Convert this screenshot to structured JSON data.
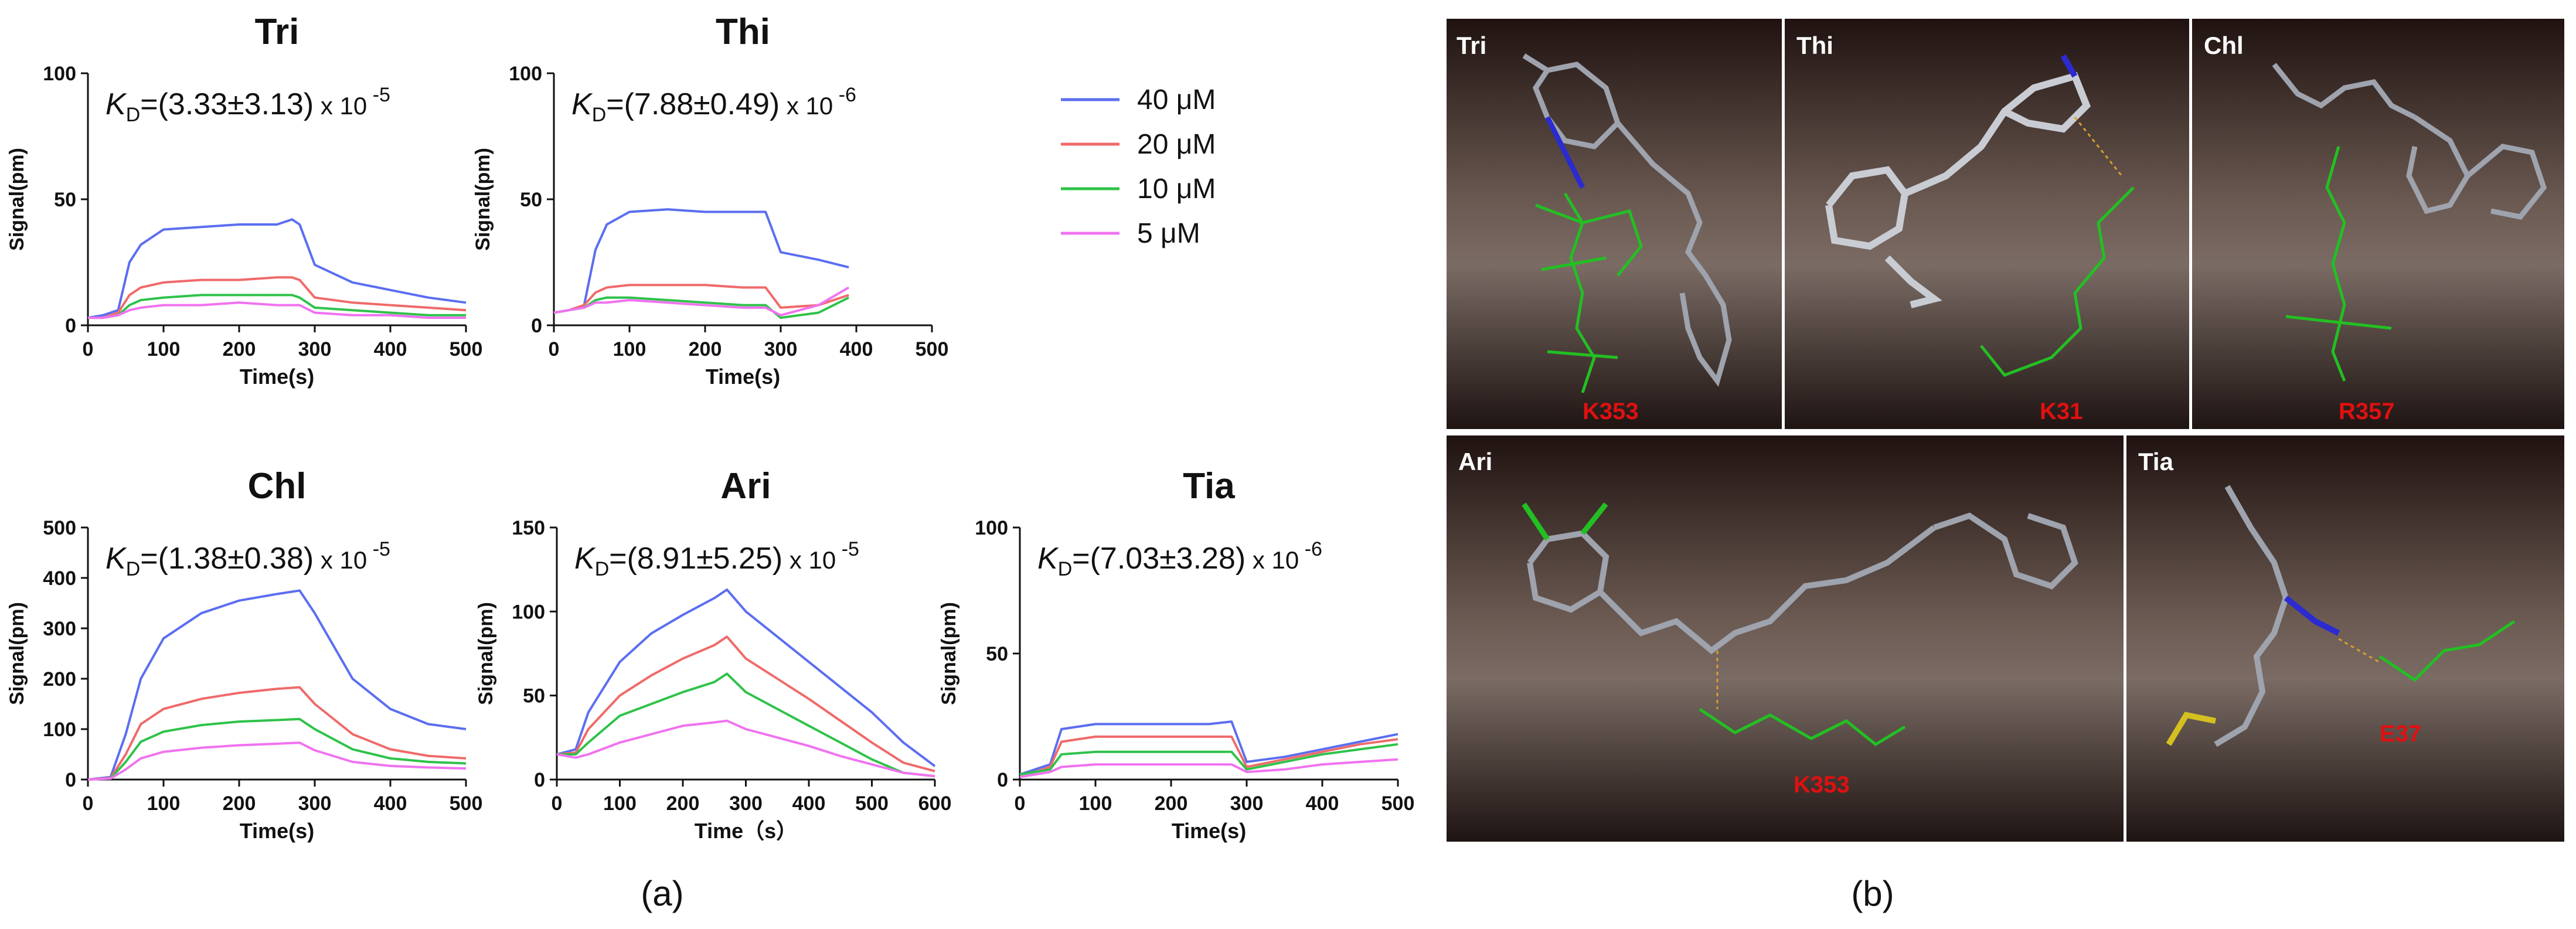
{
  "figure": {
    "panel_a_label": "(a)",
    "panel_b_label": "(b)",
    "legend": [
      {
        "label": "40  μM",
        "color": "#5b6ef0"
      },
      {
        "label": "20  μM",
        "color": "#f06a6a"
      },
      {
        "label": "10  μM",
        "color": "#2fc24a"
      },
      {
        "label": "5  μM",
        "color": "#f072f0"
      }
    ]
  },
  "chart_data": [
    {
      "type": "line",
      "title": "Tri",
      "kd_label": "K",
      "kd_sub": "D",
      "kd_value": "=(3.33±3.13)",
      "kd_unit": " x 10",
      "kd_exp": "-5",
      "xlabel": "Time(s)",
      "ylabel": "Signal(pm)",
      "xlim": [
        0,
        500
      ],
      "ylim": [
        0,
        100
      ],
      "xticks": [
        0,
        100,
        200,
        300,
        400,
        500
      ],
      "yticks": [
        0,
        50,
        100
      ],
      "x": [
        0,
        20,
        40,
        55,
        70,
        100,
        150,
        200,
        250,
        270,
        280,
        300,
        350,
        400,
        450,
        500
      ],
      "series": [
        {
          "name": "40  μM",
          "values": [
            3,
            4,
            6,
            25,
            32,
            38,
            39,
            40,
            40,
            42,
            40,
            24,
            17,
            14,
            11,
            9
          ]
        },
        {
          "name": "20  μM",
          "values": [
            3,
            3,
            5,
            12,
            15,
            17,
            18,
            18,
            19,
            19,
            18,
            11,
            9,
            8,
            7,
            6
          ]
        },
        {
          "name": "10  μM",
          "values": [
            3,
            3,
            4,
            8,
            10,
            11,
            12,
            12,
            12,
            12,
            11,
            7,
            6,
            5,
            4,
            4
          ]
        },
        {
          "name": "5  μM",
          "values": [
            3,
            3,
            4,
            6,
            7,
            8,
            8,
            9,
            8,
            8,
            8,
            5,
            4,
            4,
            3,
            3
          ]
        }
      ]
    },
    {
      "type": "line",
      "title": "Thi",
      "kd_label": "K",
      "kd_sub": "D",
      "kd_value": "=(7.88±0.49)",
      "kd_unit": " x 10",
      "kd_exp": "-6",
      "xlabel": "Time(s)",
      "ylabel": "Signal(pm)",
      "xlim": [
        0,
        500
      ],
      "ylim": [
        0,
        100
      ],
      "xticks": [
        0,
        100,
        200,
        300,
        400,
        500
      ],
      "yticks": [
        0,
        50,
        100
      ],
      "x": [
        0,
        20,
        40,
        55,
        70,
        100,
        150,
        200,
        250,
        280,
        300,
        350,
        390
      ],
      "series": [
        {
          "name": "40  μM",
          "values": [
            5,
            6,
            8,
            30,
            40,
            45,
            46,
            45,
            45,
            45,
            29,
            26,
            23
          ]
        },
        {
          "name": "20  μM",
          "values": [
            5,
            6,
            8,
            13,
            15,
            16,
            16,
            16,
            15,
            15,
            7,
            8,
            12
          ]
        },
        {
          "name": "10  μM",
          "values": [
            5,
            6,
            7,
            10,
            11,
            11,
            10,
            9,
            8,
            8,
            3,
            5,
            11
          ]
        },
        {
          "name": "5  μM",
          "values": [
            5,
            6,
            7,
            9,
            9,
            10,
            9,
            8,
            7,
            7,
            4,
            8,
            15
          ]
        }
      ]
    },
    {
      "type": "line",
      "title": "Chl",
      "kd_label": "K",
      "kd_sub": "D",
      "kd_value": "=(1.38±0.38)",
      "kd_unit": " x 10",
      "kd_exp": "-5",
      "xlabel": "Time(s)",
      "ylabel": "Signal(pm)",
      "xlim": [
        0,
        500
      ],
      "ylim": [
        0,
        500
      ],
      "xticks": [
        0,
        100,
        200,
        300,
        400,
        500
      ],
      "yticks": [
        0,
        100,
        200,
        300,
        400,
        500
      ],
      "x": [
        0,
        30,
        50,
        70,
        100,
        150,
        200,
        250,
        280,
        300,
        350,
        400,
        450,
        500
      ],
      "series": [
        {
          "name": "40  μM",
          "values": [
            0,
            5,
            90,
            200,
            280,
            330,
            355,
            368,
            375,
            330,
            200,
            140,
            110,
            100
          ]
        },
        {
          "name": "20  μM",
          "values": [
            0,
            3,
            50,
            110,
            140,
            160,
            172,
            180,
            183,
            150,
            90,
            60,
            47,
            42
          ]
        },
        {
          "name": "10  μM",
          "values": [
            0,
            2,
            35,
            75,
            95,
            108,
            115,
            118,
            120,
            100,
            60,
            42,
            35,
            32
          ]
        },
        {
          "name": "5  μM",
          "values": [
            0,
            2,
            20,
            42,
            55,
            63,
            68,
            71,
            73,
            58,
            35,
            27,
            24,
            22
          ]
        }
      ]
    },
    {
      "type": "line",
      "title": "Ari",
      "kd_label": "K",
      "kd_sub": "D",
      "kd_value": "=(8.91±5.25)",
      "kd_unit": " x 10",
      "kd_exp": "-5",
      "xlabel": "Time（s）",
      "ylabel": "Signal(pm)",
      "xlim": [
        0,
        600
      ],
      "ylim": [
        0,
        150
      ],
      "xticks": [
        0,
        100,
        200,
        300,
        400,
        500,
        600
      ],
      "yticks": [
        0,
        50,
        100,
        150
      ],
      "x": [
        0,
        30,
        50,
        100,
        150,
        200,
        250,
        270,
        300,
        350,
        400,
        450,
        500,
        550,
        600
      ],
      "series": [
        {
          "name": "40  μM",
          "values": [
            15,
            18,
            40,
            70,
            87,
            98,
            108,
            113,
            100,
            85,
            70,
            55,
            40,
            22,
            8
          ]
        },
        {
          "name": "20  μM",
          "values": [
            15,
            16,
            30,
            50,
            62,
            72,
            80,
            85,
            72,
            60,
            48,
            35,
            22,
            10,
            5
          ]
        },
        {
          "name": "10  μM",
          "values": [
            15,
            15,
            22,
            38,
            45,
            52,
            58,
            63,
            52,
            42,
            32,
            22,
            12,
            4,
            2
          ]
        },
        {
          "name": "5  μM",
          "values": [
            15,
            13,
            15,
            22,
            27,
            32,
            34,
            35,
            30,
            25,
            20,
            14,
            9,
            4,
            2
          ]
        }
      ]
    },
    {
      "type": "line",
      "title": "Tia",
      "kd_label": "K",
      "kd_sub": "D",
      "kd_value": "=(7.03±3.28)",
      "kd_unit": " x 10",
      "kd_exp": "-6",
      "xlabel": "Time(s)",
      "ylabel": "Signal(pm)",
      "xlim": [
        0,
        500
      ],
      "ylim": [
        0,
        100
      ],
      "xticks": [
        0,
        100,
        200,
        300,
        400,
        500
      ],
      "yticks": [
        0,
        50,
        100
      ],
      "x": [
        0,
        20,
        40,
        55,
        100,
        150,
        200,
        250,
        280,
        300,
        350,
        400,
        450,
        500
      ],
      "series": [
        {
          "name": "40  μM",
          "values": [
            2,
            4,
            6,
            20,
            22,
            22,
            22,
            22,
            23,
            7,
            9,
            12,
            15,
            18
          ]
        },
        {
          "name": "20  μM",
          "values": [
            2,
            3,
            5,
            15,
            17,
            17,
            17,
            17,
            17,
            5,
            8,
            11,
            14,
            16
          ]
        },
        {
          "name": "10  μM",
          "values": [
            2,
            3,
            4,
            10,
            11,
            11,
            11,
            11,
            11,
            4,
            7,
            10,
            12,
            14
          ]
        },
        {
          "name": "5  μM",
          "values": [
            1,
            2,
            3,
            5,
            6,
            6,
            6,
            6,
            6,
            3,
            4,
            6,
            7,
            8
          ]
        }
      ]
    }
  ],
  "docking": [
    {
      "name": "Tri",
      "residue": "K353"
    },
    {
      "name": "Thi",
      "residue": "K31"
    },
    {
      "name": "Chl",
      "residue": "R357"
    },
    {
      "name": "Ari",
      "residue": "K353"
    },
    {
      "name": "Tia",
      "residue": "E37"
    }
  ]
}
